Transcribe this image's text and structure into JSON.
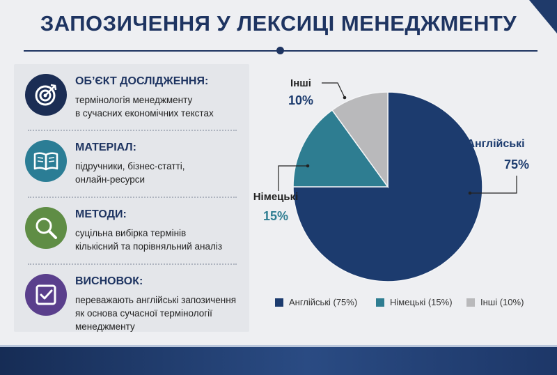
{
  "header": {
    "title": "ЗАПОЗИЧЕННЯ У ЛЕКСИЦІ МЕНЕДЖМЕНТУ"
  },
  "info_blocks": [
    {
      "heading": "ОБ’ЄКТ ДОСЛІДЖЕННЯ:",
      "lines": [
        "термінологія менеджменту",
        "в сучасних економічних текстах"
      ],
      "icon": "target-icon",
      "color": "#1b2d54"
    },
    {
      "heading": "МАТЕРІАЛ:",
      "lines": [
        "підручники, бізнес-статті,",
        "онлайн-ресурси"
      ],
      "icon": "book-icon",
      "color": "#2b7d95"
    },
    {
      "heading": "МЕТОДИ:",
      "lines": [
        "суцільна вибірка термінів",
        "кількісний та порівняльний аналіз"
      ],
      "icon": "magnifier-icon",
      "color": "#5f8d45"
    },
    {
      "heading": "ВИСНОВОК:",
      "lines": [
        "переважають англійські запозичення",
        "як основа сучасної термінології",
        "менеджменту"
      ],
      "icon": "checkbox-icon",
      "color": "#5a3f8c"
    }
  ],
  "chart_data": {
    "type": "pie",
    "slices": [
      {
        "label": "Англійські",
        "value": 75,
        "value_label": "75%",
        "legend": "Англійські (75%)",
        "color": "#1c3b6e",
        "label_color": "#1c3b6e"
      },
      {
        "label": "Німецькі",
        "value": 15,
        "value_label": "15%",
        "legend": "Німецькі (15%)",
        "color": "#2e7d91",
        "label_color": "#2e7d91"
      },
      {
        "label": "Інші",
        "value": 10,
        "value_label": "10%",
        "legend": "Інші (10%)",
        "color": "#b9b9bb",
        "label_color": "#1c3b6e"
      }
    ],
    "start_angle_deg": 0,
    "direction": "clockwise",
    "legend_position": "bottom"
  }
}
